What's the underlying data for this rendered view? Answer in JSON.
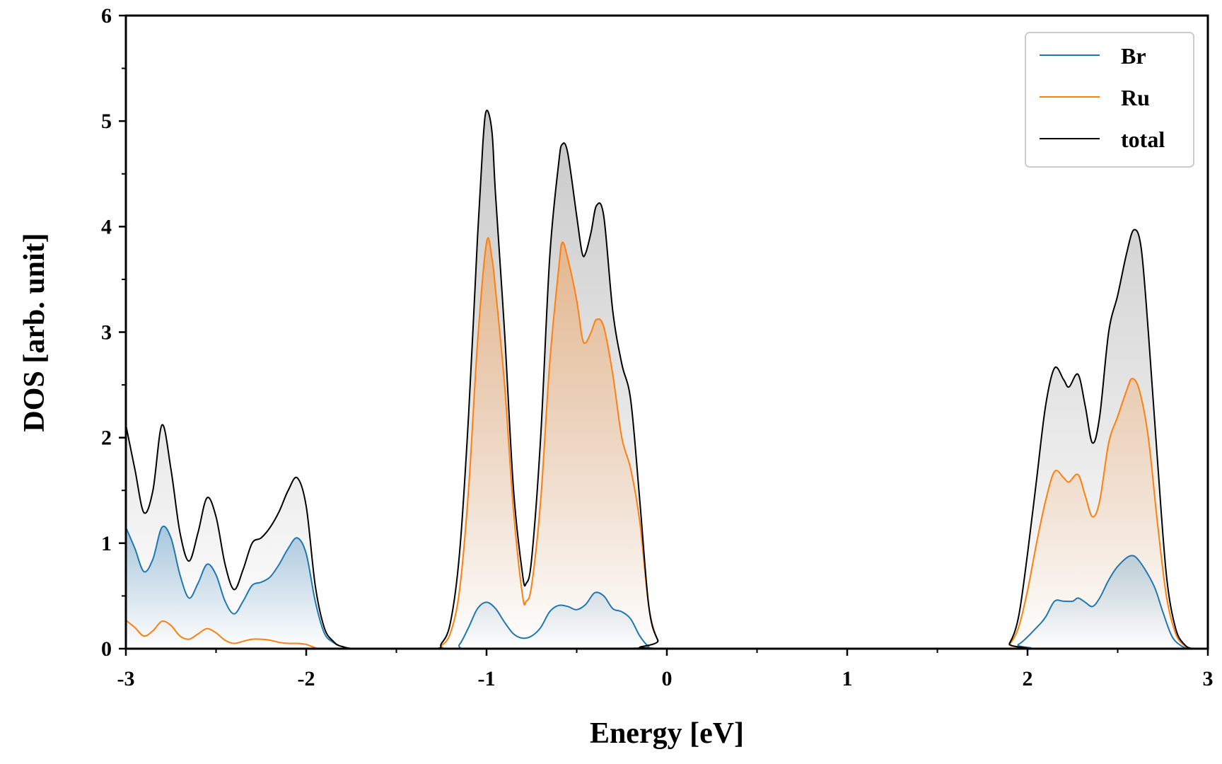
{
  "chart_data": {
    "type": "area",
    "title": "",
    "xlabel": "Energy [eV]",
    "ylabel": "DOS [arb. unit]",
    "xlim": [
      -3,
      3
    ],
    "ylim": [
      0,
      6
    ],
    "xticks": [
      -3,
      -2,
      -1,
      0,
      1,
      2,
      3
    ],
    "xtick_labels": [
      "-3",
      "-2",
      "-1",
      "0",
      "1",
      "2",
      "3"
    ],
    "yticks": [
      0,
      1,
      2,
      3,
      4,
      5,
      6
    ],
    "ytick_labels": [
      "0",
      "1",
      "2",
      "3",
      "4",
      "5",
      "6"
    ],
    "x_minor_step": 0.5,
    "y_minor_step": 0.5,
    "grid": false,
    "legend_position": "top-right",
    "series": [
      {
        "name": "Br",
        "color": "#1f77b4",
        "points": [
          [
            -3.0,
            1.15
          ],
          [
            -2.95,
            0.95
          ],
          [
            -2.9,
            0.73
          ],
          [
            -2.85,
            0.85
          ],
          [
            -2.8,
            1.15
          ],
          [
            -2.75,
            1.05
          ],
          [
            -2.7,
            0.7
          ],
          [
            -2.65,
            0.48
          ],
          [
            -2.6,
            0.62
          ],
          [
            -2.55,
            0.8
          ],
          [
            -2.5,
            0.7
          ],
          [
            -2.45,
            0.45
          ],
          [
            -2.4,
            0.33
          ],
          [
            -2.35,
            0.45
          ],
          [
            -2.3,
            0.6
          ],
          [
            -2.25,
            0.63
          ],
          [
            -2.2,
            0.68
          ],
          [
            -2.15,
            0.8
          ],
          [
            -2.1,
            0.95
          ],
          [
            -2.05,
            1.05
          ],
          [
            -2.0,
            0.9
          ],
          [
            -1.95,
            0.45
          ],
          [
            -1.9,
            0.15
          ],
          [
            -1.85,
            0.06
          ],
          [
            -1.8,
            0.02
          ],
          [
            -1.7,
            0.0
          ],
          [
            -1.2,
            0.0
          ],
          [
            -1.15,
            0.04
          ],
          [
            -1.1,
            0.2
          ],
          [
            -1.05,
            0.38
          ],
          [
            -1.0,
            0.44
          ],
          [
            -0.95,
            0.38
          ],
          [
            -0.9,
            0.25
          ],
          [
            -0.85,
            0.14
          ],
          [
            -0.8,
            0.1
          ],
          [
            -0.75,
            0.12
          ],
          [
            -0.7,
            0.2
          ],
          [
            -0.65,
            0.35
          ],
          [
            -0.6,
            0.41
          ],
          [
            -0.55,
            0.4
          ],
          [
            -0.5,
            0.37
          ],
          [
            -0.45,
            0.42
          ],
          [
            -0.4,
            0.53
          ],
          [
            -0.35,
            0.5
          ],
          [
            -0.3,
            0.38
          ],
          [
            -0.25,
            0.35
          ],
          [
            -0.2,
            0.28
          ],
          [
            -0.15,
            0.12
          ],
          [
            -0.1,
            0.02
          ],
          [
            -0.05,
            0.0
          ],
          [
            1.85,
            0.0
          ],
          [
            1.95,
            0.04
          ],
          [
            2.05,
            0.2
          ],
          [
            2.1,
            0.3
          ],
          [
            2.15,
            0.45
          ],
          [
            2.2,
            0.45
          ],
          [
            2.25,
            0.45
          ],
          [
            2.28,
            0.48
          ],
          [
            2.32,
            0.44
          ],
          [
            2.36,
            0.4
          ],
          [
            2.4,
            0.48
          ],
          [
            2.45,
            0.65
          ],
          [
            2.5,
            0.78
          ],
          [
            2.57,
            0.88
          ],
          [
            2.62,
            0.83
          ],
          [
            2.7,
            0.6
          ],
          [
            2.75,
            0.35
          ],
          [
            2.8,
            0.12
          ],
          [
            2.85,
            0.03
          ],
          [
            2.9,
            0.0
          ],
          [
            3.0,
            0.0
          ]
        ]
      },
      {
        "name": "Ru",
        "color": "#ff7f0e",
        "points": [
          [
            -3.0,
            0.27
          ],
          [
            -2.95,
            0.2
          ],
          [
            -2.9,
            0.12
          ],
          [
            -2.85,
            0.17
          ],
          [
            -2.8,
            0.26
          ],
          [
            -2.75,
            0.22
          ],
          [
            -2.7,
            0.12
          ],
          [
            -2.65,
            0.09
          ],
          [
            -2.6,
            0.14
          ],
          [
            -2.55,
            0.19
          ],
          [
            -2.5,
            0.15
          ],
          [
            -2.45,
            0.08
          ],
          [
            -2.4,
            0.05
          ],
          [
            -2.35,
            0.07
          ],
          [
            -2.3,
            0.09
          ],
          [
            -2.25,
            0.09
          ],
          [
            -2.2,
            0.08
          ],
          [
            -2.15,
            0.06
          ],
          [
            -2.1,
            0.05
          ],
          [
            -2.05,
            0.05
          ],
          [
            -2.0,
            0.04
          ],
          [
            -1.95,
            0.01
          ],
          [
            -1.9,
            0.0
          ],
          [
            -1.3,
            0.0
          ],
          [
            -1.25,
            0.03
          ],
          [
            -1.2,
            0.15
          ],
          [
            -1.15,
            0.55
          ],
          [
            -1.1,
            1.5
          ],
          [
            -1.05,
            2.9
          ],
          [
            -1.0,
            3.85
          ],
          [
            -0.97,
            3.7
          ],
          [
            -0.95,
            3.4
          ],
          [
            -0.9,
            2.5
          ],
          [
            -0.85,
            1.3
          ],
          [
            -0.8,
            0.5
          ],
          [
            -0.78,
            0.45
          ],
          [
            -0.75,
            0.6
          ],
          [
            -0.7,
            1.4
          ],
          [
            -0.65,
            2.7
          ],
          [
            -0.6,
            3.6
          ],
          [
            -0.58,
            3.85
          ],
          [
            -0.55,
            3.7
          ],
          [
            -0.5,
            3.3
          ],
          [
            -0.47,
            2.95
          ],
          [
            -0.45,
            2.9
          ],
          [
            -0.42,
            3.0
          ],
          [
            -0.39,
            3.12
          ],
          [
            -0.35,
            3.05
          ],
          [
            -0.3,
            2.6
          ],
          [
            -0.25,
            2.0
          ],
          [
            -0.2,
            1.7
          ],
          [
            -0.15,
            1.2
          ],
          [
            -0.1,
            0.4
          ],
          [
            -0.05,
            0.08
          ],
          [
            0.0,
            0.0
          ],
          [
            1.85,
            0.0
          ],
          [
            1.9,
            0.04
          ],
          [
            1.95,
            0.2
          ],
          [
            2.0,
            0.55
          ],
          [
            2.05,
            1.0
          ],
          [
            2.1,
            1.4
          ],
          [
            2.15,
            1.68
          ],
          [
            2.2,
            1.62
          ],
          [
            2.23,
            1.58
          ],
          [
            2.28,
            1.65
          ],
          [
            2.32,
            1.45
          ],
          [
            2.36,
            1.25
          ],
          [
            2.4,
            1.4
          ],
          [
            2.45,
            1.95
          ],
          [
            2.5,
            2.2
          ],
          [
            2.55,
            2.45
          ],
          [
            2.58,
            2.56
          ],
          [
            2.62,
            2.45
          ],
          [
            2.67,
            2.0
          ],
          [
            2.72,
            1.2
          ],
          [
            2.77,
            0.5
          ],
          [
            2.82,
            0.15
          ],
          [
            2.87,
            0.03
          ],
          [
            2.92,
            0.0
          ],
          [
            3.0,
            0.0
          ]
        ]
      },
      {
        "name": "total",
        "color": "#000000",
        "points": [
          [
            -3.0,
            2.12
          ],
          [
            -2.95,
            1.7
          ],
          [
            -2.9,
            1.29
          ],
          [
            -2.85,
            1.5
          ],
          [
            -2.8,
            2.12
          ],
          [
            -2.75,
            1.7
          ],
          [
            -2.7,
            1.1
          ],
          [
            -2.65,
            0.83
          ],
          [
            -2.6,
            1.1
          ],
          [
            -2.55,
            1.43
          ],
          [
            -2.5,
            1.25
          ],
          [
            -2.45,
            0.8
          ],
          [
            -2.4,
            0.56
          ],
          [
            -2.35,
            0.75
          ],
          [
            -2.3,
            1.0
          ],
          [
            -2.25,
            1.05
          ],
          [
            -2.2,
            1.15
          ],
          [
            -2.15,
            1.3
          ],
          [
            -2.1,
            1.5
          ],
          [
            -2.05,
            1.62
          ],
          [
            -2.0,
            1.35
          ],
          [
            -1.95,
            0.6
          ],
          [
            -1.9,
            0.2
          ],
          [
            -1.85,
            0.07
          ],
          [
            -1.8,
            0.02
          ],
          [
            -1.7,
            0.0
          ],
          [
            -1.3,
            0.0
          ],
          [
            -1.25,
            0.05
          ],
          [
            -1.2,
            0.25
          ],
          [
            -1.15,
            0.9
          ],
          [
            -1.1,
            2.2
          ],
          [
            -1.05,
            3.9
          ],
          [
            -1.02,
            4.8
          ],
          [
            -1.0,
            5.1
          ],
          [
            -0.97,
            4.9
          ],
          [
            -0.95,
            4.3
          ],
          [
            -0.9,
            3.0
          ],
          [
            -0.85,
            1.5
          ],
          [
            -0.8,
            0.7
          ],
          [
            -0.78,
            0.62
          ],
          [
            -0.75,
            0.85
          ],
          [
            -0.7,
            2.0
          ],
          [
            -0.65,
            3.7
          ],
          [
            -0.6,
            4.6
          ],
          [
            -0.58,
            4.78
          ],
          [
            -0.55,
            4.7
          ],
          [
            -0.5,
            4.1
          ],
          [
            -0.47,
            3.75
          ],
          [
            -0.45,
            3.75
          ],
          [
            -0.42,
            3.95
          ],
          [
            -0.39,
            4.2
          ],
          [
            -0.35,
            4.1
          ],
          [
            -0.3,
            3.2
          ],
          [
            -0.25,
            2.7
          ],
          [
            -0.2,
            2.35
          ],
          [
            -0.15,
            1.4
          ],
          [
            -0.1,
            0.4
          ],
          [
            -0.05,
            0.08
          ],
          [
            0.0,
            0.0
          ],
          [
            1.85,
            0.0
          ],
          [
            1.9,
            0.05
          ],
          [
            1.95,
            0.3
          ],
          [
            2.0,
            0.9
          ],
          [
            2.05,
            1.6
          ],
          [
            2.1,
            2.3
          ],
          [
            2.15,
            2.66
          ],
          [
            2.2,
            2.55
          ],
          [
            2.23,
            2.48
          ],
          [
            2.28,
            2.6
          ],
          [
            2.32,
            2.3
          ],
          [
            2.36,
            1.95
          ],
          [
            2.4,
            2.2
          ],
          [
            2.45,
            3.0
          ],
          [
            2.5,
            3.35
          ],
          [
            2.55,
            3.75
          ],
          [
            2.59,
            3.97
          ],
          [
            2.63,
            3.8
          ],
          [
            2.67,
            3.0
          ],
          [
            2.72,
            1.8
          ],
          [
            2.77,
            0.7
          ],
          [
            2.82,
            0.2
          ],
          [
            2.87,
            0.04
          ],
          [
            2.92,
            0.0
          ],
          [
            3.0,
            0.0
          ]
        ]
      }
    ]
  },
  "colors": {
    "Br": "#1f77b4",
    "Ru": "#ff7f0e",
    "total": "#000000",
    "total_fill": "#a0a0a0"
  }
}
